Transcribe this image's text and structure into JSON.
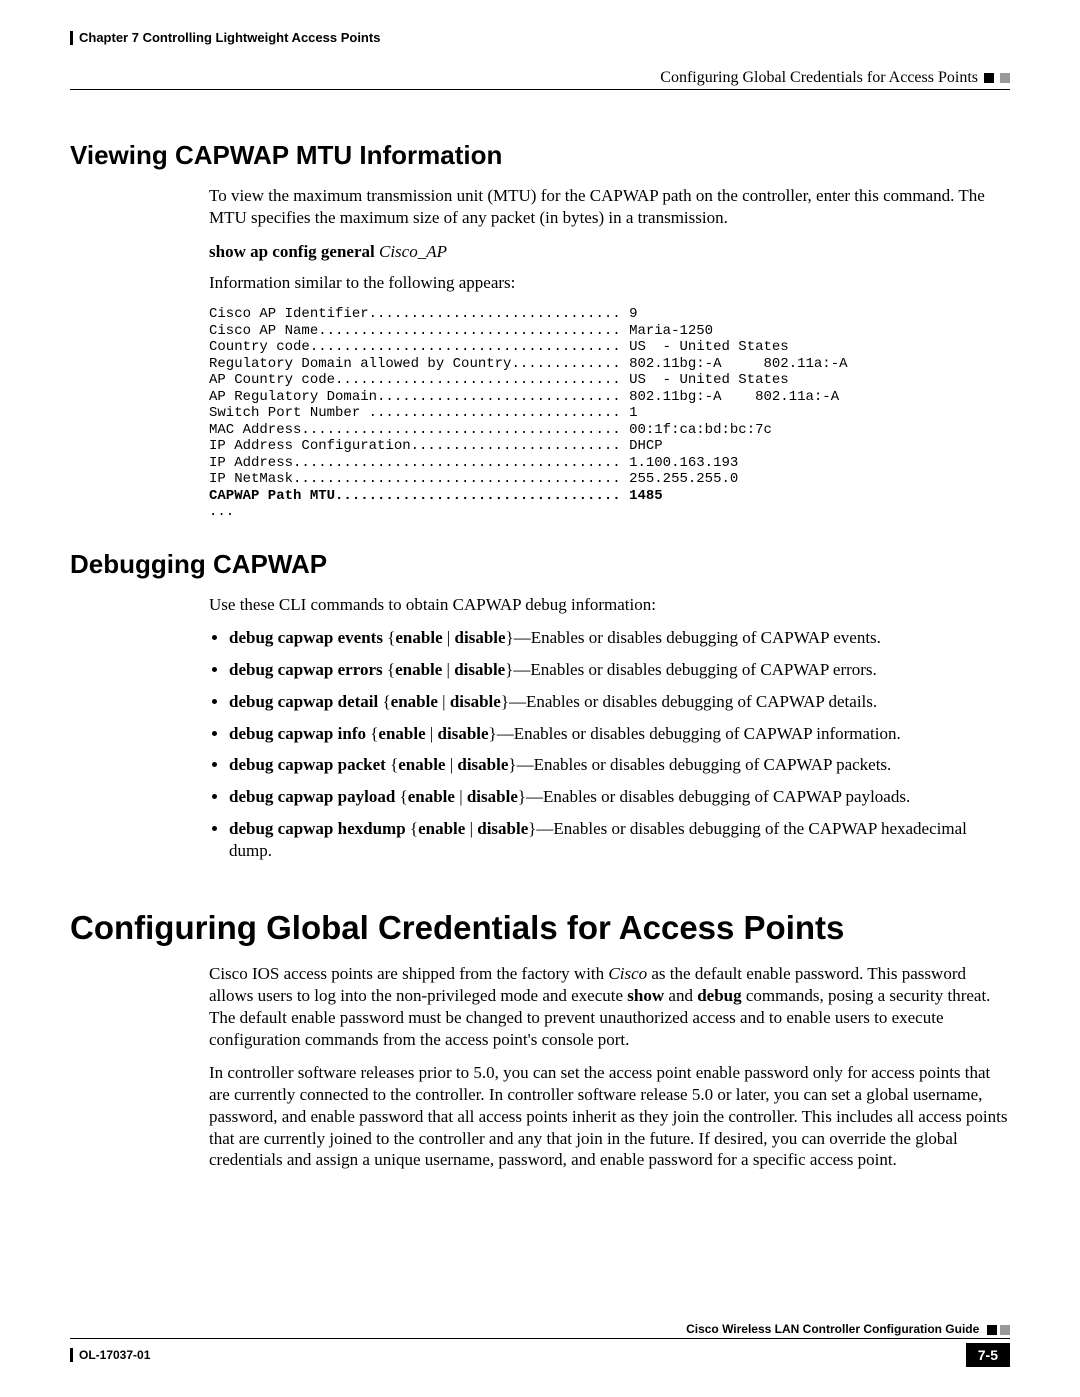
{
  "header": {
    "chapter": "Chapter 7      Controlling Lightweight Access Points",
    "section": "Configuring Global Credentials for Access Points"
  },
  "sec1": {
    "title": "Viewing CAPWAP MTU Information",
    "intro": "To view the maximum transmission unit (MTU) for the CAPWAP path on the controller, enter this command. The MTU specifies the maximum size of any packet (in bytes) in a transmission.",
    "cmd_bold": "show ap config general",
    "cmd_ital": "Cisco_AP",
    "follow": "Information similar to the following appears:",
    "cli_pre": "Cisco AP Identifier.............................. 9\nCisco AP Name.................................... Maria-1250\nCountry code..................................... US  - United States\nRegulatory Domain allowed by Country............. 802.11bg:-A     802.11a:-A\nAP Country code.................................. US  - United States\nAP Regulatory Domain............................. 802.11bg:-A    802.11a:-A\nSwitch Port Number .............................. 1\nMAC Address...................................... 00:1f:ca:bd:bc:7c\nIP Address Configuration......................... DHCP\nIP Address....................................... 1.100.163.193\nIP NetMask....................................... 255.255.255.0",
    "cli_bold": "CAPWAP Path MTU.................................. 1485",
    "cli_post": "..."
  },
  "sec2": {
    "title": "Debugging CAPWAP",
    "intro": "Use these CLI commands to obtain CAPWAP debug information:",
    "bullets": [
      {
        "cmd": "debug capwap events",
        "desc": "—Enables or disables debugging of CAPWAP events."
      },
      {
        "cmd": "debug capwap errors",
        "desc": "—Enables or disables debugging of CAPWAP errors."
      },
      {
        "cmd": "debug capwap detail",
        "desc": "—Enables or disables debugging of CAPWAP details."
      },
      {
        "cmd": "debug capwap info",
        "desc": "—Enables or disables debugging of CAPWAP information."
      },
      {
        "cmd": "debug capwap packet",
        "desc": "—Enables or disables debugging of CAPWAP packets."
      },
      {
        "cmd": "debug capwap payload",
        "desc": "—Enables or disables debugging of CAPWAP payloads."
      },
      {
        "cmd": "debug capwap hexdump",
        "desc": "—Enables or disables debugging of the CAPWAP hexadecimal dump."
      }
    ],
    "opt_open": "{",
    "opt_enable": "enable",
    "opt_sep": " | ",
    "opt_disable": "disable",
    "opt_close": "}"
  },
  "sec3": {
    "title": "Configuring Global Credentials for Access Points",
    "p1a": "Cisco IOS access points are shipped from the factory with ",
    "p1_cisco": "Cisco",
    "p1b": " as the default enable password. This password allows users to log into the non-privileged mode and execute ",
    "p1_show": "show",
    "p1c": " and ",
    "p1_debug": "debug",
    "p1d": " commands, posing a security threat. The default enable password must be changed to prevent unauthorized access and to enable users to execute configuration commands from the access point's console port.",
    "p2": "In controller software releases prior to 5.0, you can set the access point enable password only for access points that are currently connected to the controller. In controller software release 5.0 or later, you can set a global username, password, and enable password that all access points inherit as they join the controller. This includes all access points that are currently joined to the controller and any that join in the future. If desired, you can override the global credentials and assign a unique username, password, and enable password for a specific access point."
  },
  "footer": {
    "guide": "Cisco Wireless LAN Controller Configuration Guide",
    "doc": "OL-17037-01",
    "page": "7-5"
  }
}
